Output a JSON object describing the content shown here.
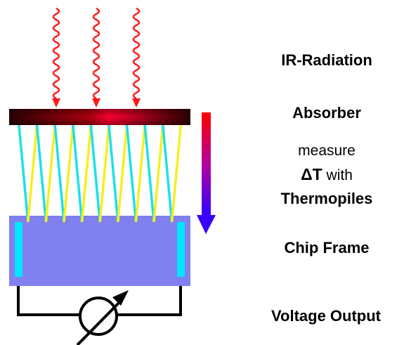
{
  "labels": {
    "ir_radiation": "IR-Radiation",
    "absorber": "Absorber",
    "measure": "measure",
    "delta_t": "ΔT",
    "with": " with",
    "thermopiles": "Thermopiles",
    "chip_frame": "Chip Frame",
    "voltage_output": "Voltage Output"
  },
  "icons": {
    "ir_waves": "wavy-arrow-down-icon",
    "heat_flow": "gradient-arrow-down-icon",
    "voltmeter": "variable-meter-icon"
  },
  "colors": {
    "ir_wave": "#ff1a1a",
    "absorber_dark": "#2a0000",
    "absorber_hot": "#ff0033",
    "thermo_a": "#1ee0e8",
    "thermo_b": "#f6f01e",
    "chip_frame": "#8080f0",
    "contact": "#00e5ff",
    "gradient_top": "#ff0000",
    "gradient_bottom": "#3300ff",
    "arrow_head": "#3a00ff"
  }
}
